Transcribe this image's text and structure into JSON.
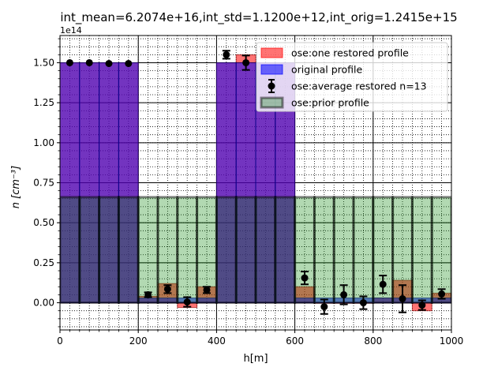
{
  "chart_data": {
    "type": "bar",
    "title": "int_mean=6.2074e+16,int_std=1.1200e+12,int_orig=1.2415e+15",
    "xlabel": "h[m]",
    "ylabel": "n [cm⁻³]",
    "offset_text": "1e14",
    "xlim": [
      0,
      1000
    ],
    "ylim": [
      -0.17,
      1.67
    ],
    "y_scale_factor": 100000000000000.0,
    "grid": true,
    "legend_position": "upper right",
    "x_ticks": [
      0,
      200,
      400,
      600,
      800,
      1000
    ],
    "x_tick_labels": [
      "0",
      "200",
      "400",
      "600",
      "800",
      "1000"
    ],
    "y_ticks": [
      0.0,
      0.25,
      0.5,
      0.75,
      1.0,
      1.25,
      1.5
    ],
    "y_tick_labels": [
      "0.00",
      "0.25",
      "0.50",
      "0.75",
      "1.00",
      "1.25",
      "1.50"
    ],
    "bin_width": 50,
    "x_centers": [
      25,
      75,
      125,
      175,
      225,
      275,
      325,
      375,
      425,
      475,
      525,
      575,
      625,
      675,
      725,
      775,
      825,
      875,
      925,
      975
    ],
    "series": [
      {
        "name": "ose:one restored profile",
        "kind": "bar",
        "color": "#ff0000",
        "values": [
          1.5,
          1.5,
          1.5,
          1.5,
          0.04,
          0.12,
          -0.03,
          0.1,
          1.5,
          1.55,
          1.5,
          1.5,
          0.1,
          0.0,
          0.0,
          0.0,
          0.03,
          0.14,
          -0.05,
          0.06
        ]
      },
      {
        "name": "original profile",
        "kind": "bar",
        "color": "#0000ff",
        "values": [
          1.5,
          1.5,
          1.5,
          1.5,
          0.03,
          0.03,
          0.03,
          0.03,
          1.5,
          1.5,
          1.5,
          1.5,
          0.03,
          0.03,
          0.03,
          0.03,
          0.03,
          0.03,
          0.03,
          0.03
        ]
      },
      {
        "name": "ose:average restored n=13",
        "kind": "errorbar",
        "color": "#000000",
        "values": [
          1.5,
          1.5,
          1.495,
          1.495,
          0.05,
          0.085,
          0.005,
          0.08,
          1.55,
          1.5,
          null,
          null,
          0.155,
          -0.025,
          0.05,
          0.0,
          0.115,
          0.025,
          -0.015,
          0.055
        ],
        "errors": [
          0.0,
          0.0,
          0.0,
          0.0,
          0.015,
          0.025,
          0.03,
          0.02,
          0.025,
          0.045,
          null,
          null,
          0.04,
          0.045,
          0.06,
          0.04,
          0.055,
          0.085,
          0.03,
          0.03
        ]
      },
      {
        "name": "ose:prior profile",
        "kind": "bar",
        "color": "#008000",
        "values": [
          0.66,
          0.66,
          0.66,
          0.66,
          0.66,
          0.66,
          0.66,
          0.66,
          0.66,
          0.66,
          0.66,
          0.66,
          0.66,
          0.66,
          0.66,
          0.66,
          0.66,
          0.66,
          0.66,
          0.66
        ]
      }
    ]
  }
}
